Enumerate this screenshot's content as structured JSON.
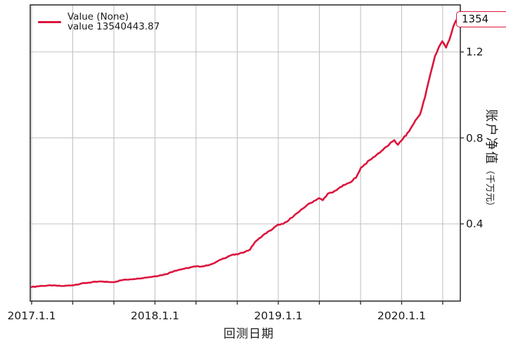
{
  "legend": {
    "series_label": "Value (None)",
    "value_label": "value 13540443.87"
  },
  "annotation": {
    "text": "1354"
  },
  "colors": {
    "line": "#dc143c",
    "grid": "#c3c3c3",
    "spine": "#333333",
    "annotation_border": "#dc143c",
    "background": "#ffffff"
  },
  "axes": {
    "x_label": "回测日期",
    "y_label": "账户净值",
    "y_label_unit": "（千万元）",
    "x_tick_labels": [
      {
        "label": "2017.1.1",
        "date": 2017.0
      },
      {
        "label": "2018.1.1",
        "date": 2018.0
      },
      {
        "label": "2019.1.1",
        "date": 2019.0
      },
      {
        "label": "2020.1.1",
        "date": 2020.0
      }
    ],
    "y_tick_labels": [
      {
        "label": "0.4",
        "value": 0.4
      },
      {
        "label": "0.8",
        "value": 0.8
      },
      {
        "label": "1.2",
        "value": 1.2
      }
    ],
    "x_gridline_dates": [
      2017.0,
      2017.333,
      2017.667,
      2018.0,
      2018.333,
      2018.667,
      2019.0,
      2019.333,
      2019.667,
      2020.0,
      2020.333
    ],
    "y_gridline_values": [
      0.4,
      0.8,
      1.2
    ]
  },
  "chart_data": {
    "type": "line",
    "title": "",
    "xlabel": "回测日期",
    "ylabel": "账户净值（千万元）",
    "xlim": [
      2016.99,
      2020.48
    ],
    "ylim": [
      0.04,
      1.42
    ],
    "grid": true,
    "legend_position": "upper left",
    "legend_entries": [
      "Value (None)",
      "value 13540443.87"
    ],
    "final_value_yuan": "13540443.87",
    "series": [
      {
        "name": "Value (None) value 13540443.87",
        "color": "#dc143c",
        "points": [
          [
            2017.0,
            0.106
          ],
          [
            2017.08,
            0.112
          ],
          [
            2017.17,
            0.113
          ],
          [
            2017.25,
            0.111
          ],
          [
            2017.33,
            0.114
          ],
          [
            2017.4,
            0.122
          ],
          [
            2017.49,
            0.129
          ],
          [
            2017.57,
            0.132
          ],
          [
            2017.62,
            0.13
          ],
          [
            2017.66,
            0.129
          ],
          [
            2017.74,
            0.139
          ],
          [
            2017.8,
            0.142
          ],
          [
            2017.86,
            0.146
          ],
          [
            2017.95,
            0.152
          ],
          [
            2018.0,
            0.156
          ],
          [
            2018.09,
            0.166
          ],
          [
            2018.16,
            0.182
          ],
          [
            2018.24,
            0.192
          ],
          [
            2018.33,
            0.202
          ],
          [
            2018.4,
            0.203
          ],
          [
            2018.47,
            0.215
          ],
          [
            2018.54,
            0.235
          ],
          [
            2018.62,
            0.255
          ],
          [
            2018.67,
            0.258
          ],
          [
            2018.73,
            0.27
          ],
          [
            2018.77,
            0.28
          ],
          [
            2018.81,
            0.315
          ],
          [
            2018.83,
            0.325
          ],
          [
            2018.89,
            0.354
          ],
          [
            2018.94,
            0.37
          ],
          [
            2019.0,
            0.397
          ],
          [
            2019.04,
            0.4
          ],
          [
            2019.07,
            0.41
          ],
          [
            2019.13,
            0.44
          ],
          [
            2019.17,
            0.457
          ],
          [
            2019.23,
            0.486
          ],
          [
            2019.29,
            0.507
          ],
          [
            2019.33,
            0.52
          ],
          [
            2019.36,
            0.51
          ],
          [
            2019.4,
            0.54
          ],
          [
            2019.44,
            0.546
          ],
          [
            2019.5,
            0.57
          ],
          [
            2019.57,
            0.59
          ],
          [
            2019.63,
            0.615
          ],
          [
            2019.67,
            0.662
          ],
          [
            2019.77,
            0.71
          ],
          [
            2019.85,
            0.745
          ],
          [
            2019.9,
            0.77
          ],
          [
            2019.94,
            0.79
          ],
          [
            2019.97,
            0.768
          ],
          [
            2020.01,
            0.795
          ],
          [
            2020.06,
            0.83
          ],
          [
            2020.11,
            0.88
          ],
          [
            2020.15,
            0.91
          ],
          [
            2020.19,
            0.99
          ],
          [
            2020.23,
            1.09
          ],
          [
            2020.27,
            1.18
          ],
          [
            2020.3,
            1.22
          ],
          [
            2020.33,
            1.25
          ],
          [
            2020.36,
            1.22
          ],
          [
            2020.4,
            1.28
          ],
          [
            2020.42,
            1.32
          ],
          [
            2020.45,
            1.354
          ]
        ]
      }
    ]
  }
}
